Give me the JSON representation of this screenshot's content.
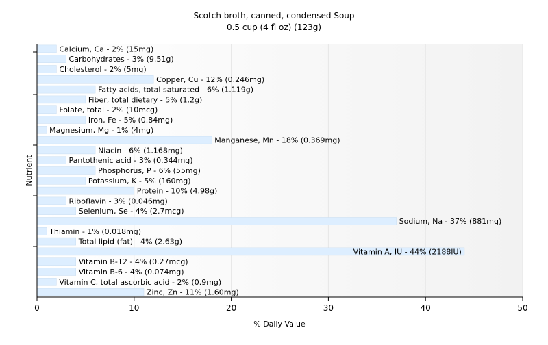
{
  "chart_data": {
    "type": "bar",
    "orientation": "horizontal",
    "title": "Scotch broth, canned, condensed Soup",
    "subtitle": "0.5 cup (4 fl oz) (123g)",
    "xlabel": "% Daily Value",
    "ylabel": "Nutrient",
    "xlim": [
      0,
      50
    ],
    "xticks": [
      0,
      10,
      20,
      30,
      40,
      50
    ],
    "grid": true,
    "bar_color": "#ddeeff",
    "bar_stroke": "#c8dcf0",
    "categories": [
      "Calcium, Ca",
      "Carbohydrates",
      "Cholesterol",
      "Copper, Cu",
      "Fatty acids, total saturated",
      "Fiber, total dietary",
      "Folate, total",
      "Iron, Fe",
      "Magnesium, Mg",
      "Manganese, Mn",
      "Niacin",
      "Pantothenic acid",
      "Phosphorus, P",
      "Potassium, K",
      "Protein",
      "Riboflavin",
      "Selenium, Se",
      "Sodium, Na",
      "Thiamin",
      "Total lipid (fat)",
      "Vitamin A, IU",
      "Vitamin B-12",
      "Vitamin B-6",
      "Vitamin C, total ascorbic acid",
      "Zinc, Zn"
    ],
    "values": [
      2,
      3,
      2,
      12,
      6,
      5,
      2,
      5,
      1,
      18,
      6,
      3,
      6,
      5,
      10,
      3,
      4,
      37,
      1,
      4,
      44,
      4,
      4,
      2,
      11
    ],
    "labels": [
      "Calcium, Ca - 2% (15mg)",
      "Carbohydrates - 3% (9.51g)",
      "Cholesterol - 2% (5mg)",
      "Copper, Cu - 12% (0.246mg)",
      "Fatty acids, total saturated - 6% (1.119g)",
      "Fiber, total dietary - 5% (1.2g)",
      "Folate, total - 2% (10mcg)",
      "Iron, Fe - 5% (0.84mg)",
      "Magnesium, Mg - 1% (4mg)",
      "Manganese, Mn - 18% (0.369mg)",
      "Niacin - 6% (1.168mg)",
      "Pantothenic acid - 3% (0.344mg)",
      "Phosphorus, P - 6% (55mg)",
      "Potassium, K - 5% (160mg)",
      "Protein - 10% (4.98g)",
      "Riboflavin - 3% (0.046mg)",
      "Selenium, Se - 4% (2.7mcg)",
      "Sodium, Na - 37% (881mg)",
      "Thiamin - 1% (0.018mg)",
      "Total lipid (fat) - 4% (2.63g)",
      "Vitamin A, IU - 44% (2188IU)",
      "Vitamin B-12 - 4% (0.27mcg)",
      "Vitamin B-6 - 4% (0.074mg)",
      "Vitamin C, total ascorbic acid - 2% (0.9mg)",
      "Zinc, Zn - 11% (1.60mg)"
    ]
  }
}
